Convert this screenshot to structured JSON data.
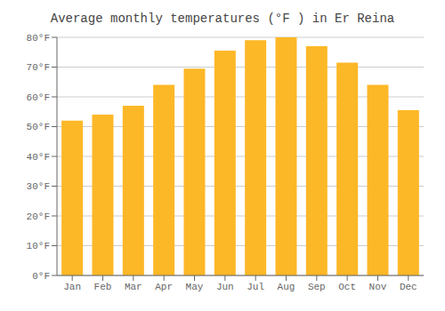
{
  "chart_data": {
    "type": "bar",
    "title": "Average monthly temperatures (°F ) in Er Reina",
    "categories": [
      "Jan",
      "Feb",
      "Mar",
      "Apr",
      "May",
      "Jun",
      "Jul",
      "Aug",
      "Sep",
      "Oct",
      "Nov",
      "Dec"
    ],
    "values": [
      52,
      54,
      57,
      64,
      69.5,
      75.5,
      79,
      80,
      77,
      71.5,
      64,
      55.5
    ],
    "color": "#FDB827",
    "ylim": [
      0,
      80
    ],
    "yticks": [
      {
        "value": 0,
        "label": "0°F"
      },
      {
        "value": 10,
        "label": "10°F"
      },
      {
        "value": 20,
        "label": "20°F"
      },
      {
        "value": 30,
        "label": "30°F"
      },
      {
        "value": 40,
        "label": "40°F"
      },
      {
        "value": 50,
        "label": "50°F"
      },
      {
        "value": 60,
        "label": "60°F"
      },
      {
        "value": 70,
        "label": "70°F"
      },
      {
        "value": 80,
        "label": "80°F"
      }
    ],
    "grid": true
  }
}
